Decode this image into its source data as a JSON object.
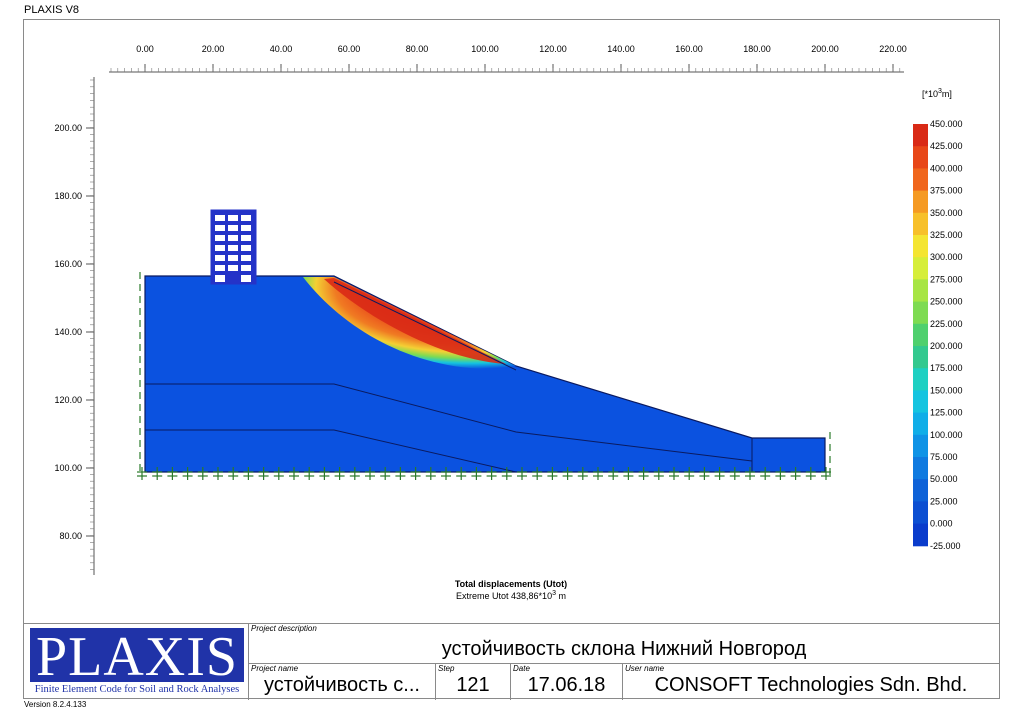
{
  "app": {
    "title": "PLAXIS V8",
    "version": "Version 8.2.4.133"
  },
  "plot": {
    "x_ticks": [
      "0.00",
      "20.00",
      "40.00",
      "60.00",
      "80.00",
      "100.00",
      "120.00",
      "140.00",
      "160.00",
      "180.00",
      "200.00",
      "220.00"
    ],
    "y_ticks": [
      "200.00",
      "180.00",
      "160.00",
      "140.00",
      "120.00",
      "100.00",
      "80.00"
    ],
    "result_title": "Total displacements (Utot)",
    "result_extreme_prefix": "Extreme Utot 438,86*10",
    "result_extreme_exp": "3",
    "result_extreme_unit": " m"
  },
  "legend": {
    "unit_prefix": "[*10",
    "unit_exp": "3",
    "unit_suffix": "m]",
    "entries": [
      {
        "label": "450.000",
        "color": "#d92a16"
      },
      {
        "label": "425.000",
        "color": "#e84718"
      },
      {
        "label": "400.000",
        "color": "#f0661d"
      },
      {
        "label": "375.000",
        "color": "#f59a23"
      },
      {
        "label": "350.000",
        "color": "#f7c02a"
      },
      {
        "label": "325.000",
        "color": "#f4e532"
      },
      {
        "label": "300.000",
        "color": "#d6ee3a"
      },
      {
        "label": "275.000",
        "color": "#a7e544"
      },
      {
        "label": "250.000",
        "color": "#7edb52"
      },
      {
        "label": "225.000",
        "color": "#4fd06e"
      },
      {
        "label": "200.000",
        "color": "#33c98f"
      },
      {
        "label": "175.000",
        "color": "#1ed0c2"
      },
      {
        "label": "150.000",
        "color": "#15c4e0"
      },
      {
        "label": "125.000",
        "color": "#10aee8"
      },
      {
        "label": "100.000",
        "color": "#0f93e6"
      },
      {
        "label": "75.000",
        "color": "#0f7ae0"
      },
      {
        "label": "50.000",
        "color": "#0e62d8"
      },
      {
        "label": "25.000",
        "color": "#0c4fd2"
      },
      {
        "label": "0.000",
        "color": "#0a3ccc"
      },
      {
        "label": "-25.000",
        "color": "#0722c8"
      }
    ]
  },
  "title_block": {
    "logo_text": "PLAXIS",
    "logo_subtitle": "Finite Element Code for Soil and Rock Analyses",
    "project_description_label": "Project description",
    "project_description": "устойчивость склона Нижний Новгород",
    "project_name_label": "Project name",
    "project_name": "устойчивость с...",
    "step_label": "Step",
    "step": "121",
    "date_label": "Date",
    "date": "17.06.18",
    "user_name_label": "User name",
    "user_name": "CONSOFT Technologies Sdn. Bhd."
  },
  "colors": {
    "model_blue": "#0b52e0",
    "building_blue": "#2433c8",
    "boundary_green": "#2a7a2a",
    "logo_blue": "#2033a8"
  }
}
